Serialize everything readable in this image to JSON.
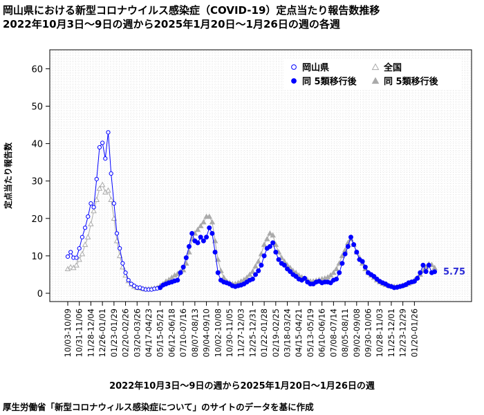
{
  "chart_data": {
    "type": "line",
    "title": "岡山県における新型コロナウイルス感染症（COVID-19）定点当たり報告数推移",
    "subtitle": "2022年10月3日～9日の週から2025年1月20日～1月26日の週の各週",
    "xlabel": "2022年10月3日～9日の週から2025年1月20日～1月26日の週",
    "ylabel": "定点当たり報告数",
    "caption": "厚生労働省「新型コロナウィルス感染症について」のサイトのデータを基に作成",
    "ylim": [
      0,
      65
    ],
    "yticks": [
      0,
      10,
      20,
      30,
      40,
      50,
      60
    ],
    "grid": true,
    "legend_position": "top-right",
    "legend": [
      {
        "label": "岡山県",
        "marker": "open-circle",
        "color": "#0000ff"
      },
      {
        "label": "全国",
        "marker": "open-triangle",
        "color": "#aaaaaa"
      },
      {
        "label": "同 5類移行後",
        "marker": "filled-circle",
        "color": "#0000ff"
      },
      {
        "label": "同 5類移行後",
        "marker": "filled-triangle",
        "color": "#aaaaaa"
      }
    ],
    "x_tick_labels": [
      "10/03-10/09",
      "10/31-11/06",
      "11/28-12/04",
      "12/26-01/01",
      "01/23-01/29",
      "02/20-02/26",
      "03/20-03/26",
      "04/17-04/23",
      "05/15-05/21",
      "06/12-06/18",
      "07/10-07/16",
      "08/07-08/13",
      "09/04-09/10",
      "10/02-10/08",
      "10/30-11/05",
      "11/27-12/03",
      "12/25-12/31",
      "01/22-01/28",
      "02/19-02/25",
      "03/18-03/24",
      "04/15-04/21",
      "05/13-05/19",
      "06/10-06/16",
      "07/08-07/14",
      "08/05-08/11",
      "09/02-09/08",
      "09/30-10/06",
      "10/28-11/03",
      "11/25-12/01",
      "12/23-12/29",
      "01/20-01/26"
    ],
    "week_of_5class_transition": 32,
    "last_value_label": "5.75",
    "series": [
      {
        "name": "岡山県",
        "color": "#0000ff",
        "values": [
          9.8,
          11,
          9.5,
          9.5,
          12,
          15,
          17.5,
          20.5,
          24,
          23,
          30.5,
          39,
          40.2,
          36,
          43,
          32,
          24,
          16,
          12,
          8,
          5.5,
          3.5,
          2.5,
          2,
          1.5,
          1.5,
          1.2,
          1,
          1,
          1,
          1.2,
          1.3,
          1.5,
          2.2,
          2.5,
          2.8,
          3,
          3.3,
          3.5,
          5.5,
          7,
          9.5,
          12.5,
          16,
          14,
          13.5,
          15,
          14,
          15,
          17.5,
          16,
          11,
          5.5,
          3.5,
          3,
          2.8,
          2.5,
          2,
          1.8,
          2,
          2.2,
          2.5,
          3,
          3.5,
          3.8,
          5,
          6,
          7.5,
          10,
          12,
          12.5,
          13.5,
          11,
          9,
          8,
          7.5,
          6.5,
          5.8,
          5,
          4.5,
          3.8,
          3.5,
          4,
          3,
          2.5,
          2.5,
          3,
          3.2,
          2.8,
          3,
          3,
          2.8,
          3.5,
          3.8,
          5.5,
          8,
          10.5,
          12.5,
          15,
          13,
          11,
          9,
          8.5,
          7,
          5.5,
          5,
          4.5,
          3.8,
          3.2,
          2.8,
          2.5,
          2,
          1.8,
          1.5,
          1.6,
          1.8,
          2,
          2.3,
          2.8,
          3,
          3.2,
          4,
          5.5,
          7.5,
          5.8,
          7.5,
          5.5,
          5.75
        ]
      },
      {
        "name": "全国",
        "color": "#aaaaaa",
        "values": [
          6.5,
          7,
          6.8,
          7.5,
          9,
          10.5,
          13,
          15,
          18.5,
          22,
          25,
          28,
          29,
          27,
          27.5,
          25,
          20,
          14,
          10,
          7,
          4.8,
          3.3,
          2.4,
          1.8,
          1.5,
          1.4,
          1.2,
          1.1,
          1.1,
          1.2,
          1.3,
          1.5,
          2,
          2.5,
          3.2,
          3.6,
          4.2,
          4.8,
          5.2,
          5.8,
          6.2,
          8,
          11,
          14.5,
          16,
          17,
          18,
          19,
          20.5,
          20.5,
          19,
          14,
          9,
          6,
          4.2,
          3.2,
          2.8,
          2.5,
          2.5,
          2.8,
          3.2,
          3.6,
          4.2,
          5,
          5.8,
          7.2,
          8.5,
          10.5,
          13,
          14.5,
          16,
          15.5,
          13,
          11,
          9.5,
          8.5,
          7.5,
          6.8,
          6,
          5.5,
          4.8,
          4.3,
          4,
          3.5,
          3.2,
          3.2,
          3.4,
          3.6,
          3.8,
          4,
          4.3,
          4.8,
          5.5,
          6.5,
          8,
          10,
          11.5,
          13.5,
          14.5,
          13,
          11,
          9.5,
          8,
          6.5,
          5.5,
          4.8,
          4.2,
          3.5,
          3,
          2.6,
          2.3,
          2.1,
          1.9,
          1.8,
          1.8,
          1.9,
          2.1,
          2.3,
          2.6,
          3,
          3.5,
          4.2,
          5,
          6,
          7,
          7.8,
          7.6,
          6.8
        ]
      }
    ]
  }
}
